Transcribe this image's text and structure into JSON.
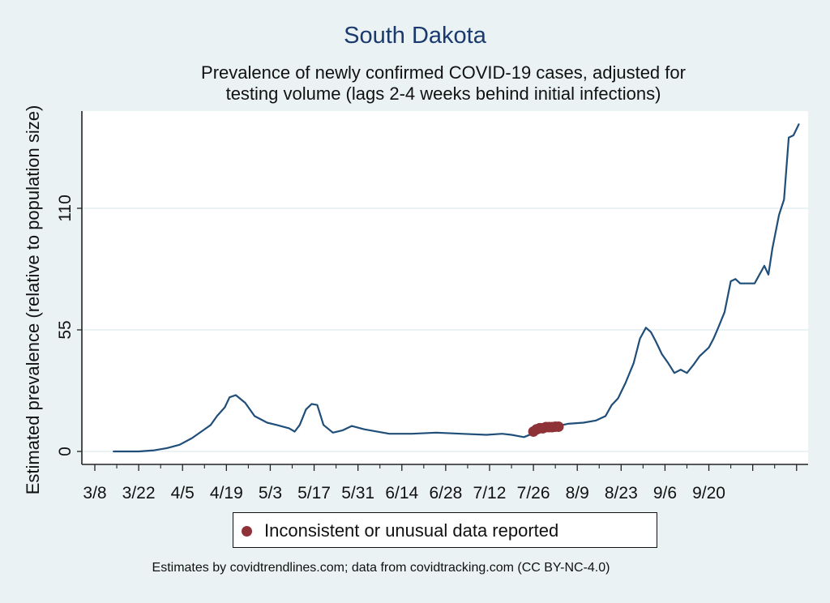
{
  "chart_data": {
    "type": "line",
    "title": "South Dakota",
    "subtitle_lines": [
      "Prevalence of newly confirmed COVID-19 cases, adjusted for",
      "testing volume (lags 2-4 weeks behind initial infections)"
    ],
    "xlabel": "",
    "ylabel": "Estimated prevalence (relative to population size)",
    "ylim": [
      0,
      148
    ],
    "yticks": [
      0,
      55,
      110
    ],
    "ytick_labels": [
      "0",
      "55",
      "110"
    ],
    "x_unit": "days since 3/8",
    "xlim": [
      -4,
      226
    ],
    "xticks_major": [
      0,
      14,
      28,
      42,
      56,
      70,
      84,
      98,
      112,
      126,
      140,
      154,
      168,
      182,
      196,
      210,
      224
    ],
    "xtick_labels": [
      "3/8",
      "3/22",
      "4/5",
      "4/19",
      "5/3",
      "5/17",
      "5/31",
      "6/14",
      "6/28",
      "7/12",
      "7/26",
      "8/9",
      "8/23",
      "9/6",
      "9/20",
      "",
      ""
    ],
    "xticks_minor": [
      7,
      21,
      35,
      49,
      63,
      77,
      91,
      105,
      119,
      133,
      147,
      161,
      175,
      189,
      203,
      217
    ],
    "grid": true,
    "line_color": "#1f4e79",
    "marker_color": "#8e3238",
    "series": [
      {
        "name": "Estimated prevalence",
        "x": [
          6,
          14,
          19,
          23,
          27,
          31,
          34,
          37,
          39,
          41.5,
          43,
          45,
          48,
          51,
          55,
          58,
          62,
          63.8,
          65.4,
          67.4,
          69.2,
          71,
          73,
          76,
          79,
          82,
          86,
          94,
          101,
          109,
          117,
          125,
          130,
          133,
          137,
          139.6,
          143.7,
          146,
          151,
          156,
          160,
          163,
          165,
          167,
          169.4,
          172,
          174,
          175.9,
          177.5,
          179,
          181,
          183,
          185,
          187,
          189,
          191,
          193,
          196,
          197.5,
          199,
          201,
          203,
          204.5,
          206,
          207.5,
          210.6,
          213.7,
          215,
          216.3,
          218.4,
          220,
          221.5,
          223,
          224.7
        ],
        "values": [
          0,
          0,
          0.5,
          1.5,
          3,
          6,
          9,
          12,
          16,
          20,
          24.5,
          25.5,
          22,
          16,
          13,
          12,
          10.5,
          9,
          12,
          19,
          21.5,
          21,
          12,
          8.5,
          9.5,
          11.5,
          10,
          8,
          8,
          8.5,
          8,
          7.5,
          8,
          7.5,
          6.5,
          8,
          9.5,
          11,
          12.5,
          13,
          14,
          16,
          21,
          24,
          31,
          40,
          51,
          56,
          54,
          50,
          44,
          40,
          35.5,
          37,
          35.5,
          39,
          43,
          47,
          51,
          56,
          63,
          77,
          78,
          76,
          76,
          76,
          84,
          80,
          92,
          107,
          114,
          142,
          143,
          148
        ]
      },
      {
        "name": "Inconsistent or unusual data reported",
        "x": [
          140,
          141,
          142,
          143,
          144,
          145,
          146,
          147,
          148
        ],
        "values": [
          9,
          10,
          10.5,
          10.5,
          11,
          11,
          11,
          11.2,
          11.2
        ]
      }
    ],
    "legend": {
      "placement": "bottom",
      "entries": [
        "Inconsistent or unusual data reported"
      ]
    },
    "footer": "Estimates by covidtrendlines.com; data from covidtracking.com (CC BY-NC-4.0)"
  }
}
